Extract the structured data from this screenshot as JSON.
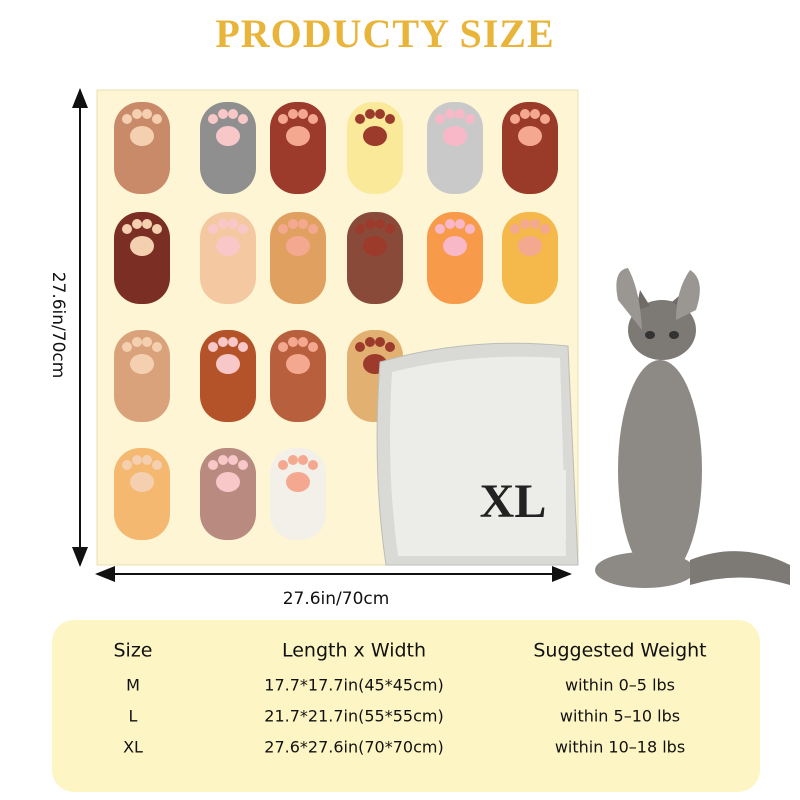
{
  "title": "PRODUCTY  SIZE",
  "dimensions": {
    "height": "27.6in/70cm",
    "width": "27.6in/70cm"
  },
  "size_badge": "XL",
  "table": {
    "header": [
      "Size",
      "Length x Width",
      "Suggested Weight"
    ],
    "rows": [
      [
        "M",
        "17.7*17.7in(45*45cm)",
        "within 0–5 lbs"
      ],
      [
        "L",
        "21.7*21.7in(55*55cm)",
        "within 5–10 lbs"
      ],
      [
        "XL",
        "27.6*27.6in(70*70cm)",
        "within 10–18 lbs"
      ]
    ]
  }
}
